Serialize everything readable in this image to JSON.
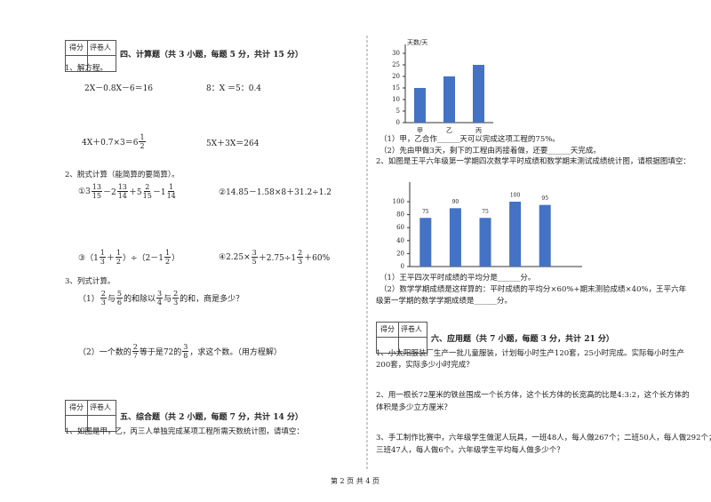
{
  "section4": {
    "score_label": "得分",
    "reviewer_label": "评卷人",
    "title": "四、计算题（共 3 小题，每题 5 分，共计 15 分）",
    "q1": {
      "prompt": "1、解方程。",
      "items": [
        [
          "2X－0.8X－6＝16"
        ],
        [
          "8：X ＝5：0.4"
        ],
        [
          "4X＋0.7×3＝6",
          {
            "n": "1",
            "d": "2"
          }
        ],
        [
          "5X＋3X＝264"
        ]
      ]
    },
    "q2": {
      "prompt": "2、脱式计算（能简算的要简算）。",
      "items": [
        [
          "①3",
          {
            "n": "13",
            "d": "15"
          },
          "－2",
          {
            "n": "13",
            "d": "14"
          },
          "＋5",
          {
            "n": "2",
            "d": "15"
          },
          "－1",
          {
            "n": "1",
            "d": "14"
          }
        ],
        [
          "②14.85－1.58×8＋31.2÷1.2"
        ],
        [
          "③（1",
          {
            "n": "1",
            "d": "3"
          },
          "＋",
          {
            "n": "1",
            "d": "2"
          },
          "）÷（2－1",
          {
            "n": "1",
            "d": "2"
          },
          "）"
        ],
        [
          "④2.25×",
          {
            "n": "3",
            "d": "5"
          },
          "＋2.75÷1",
          {
            "n": "2",
            "d": "3"
          },
          "＋60%"
        ]
      ]
    },
    "q3": {
      "prompt": "3、列式计算。",
      "items": [
        [
          "（1）",
          {
            "n": "2",
            "d": "3"
          },
          "与",
          {
            "n": "5",
            "d": "6"
          },
          "的和除以 ",
          {
            "n": "3",
            "d": "4"
          },
          "与",
          {
            "n": "2",
            "d": "3"
          },
          "的和，商是多少？"
        ],
        [
          "（2）一个数的",
          {
            "n": "2",
            "d": "7"
          },
          "等于是72的",
          {
            "n": "3",
            "d": "8"
          },
          "，求这个数。（用方程解）"
        ]
      ]
    }
  },
  "section5": {
    "score_label": "得分",
    "reviewer_label": "评卷人",
    "title": "五、综合题（共 2 小题，每题 7 分，共计 14 分）",
    "q1": {
      "prompt": "1、如图是甲，乙，丙三人单独完成某项工程所需天数统计图，请填空：",
      "blanks": [
        "（1）甲，乙合作______天可以完成这项工程的75%。",
        "（2）先由甲做3天，剩下的工程由丙接着做，还要______天完成。"
      ]
    },
    "q2": {
      "prompt": "2、如图是王平六年级第一学期四次数学平时成绩和数学期末测试成绩统计图，请根据图填空：",
      "blanks": [
        "（1）王平四次平时成绩的平均分是______分。",
        "（2）数学学期成绩是这样算的：平时成绩的平均分×60%+期末测验成绩×40%，王平六年",
        "级第一学期的数学学期成绩是______分。"
      ]
    }
  },
  "section6": {
    "score_label": "得分",
    "reviewer_label": "评卷人",
    "title": "六、应用题（共 7 小题，每题 3 分，共计 21 分）",
    "questions": [
      [
        "1、小太阳服装厂生产一批儿童服装，计划每小时生产120套，25小时完成。实际每小时生产",
        "200套，实际多少小时完成？"
      ],
      [
        "2、用一根长72厘米的铁丝围成一个长方体，这个长方体的长宽高的比是4:3:2，这个长方体的",
        "体积是多少立方厘米？"
      ],
      [
        "3、手工制作比赛中，六年级学生做泥人玩具，一班48人，每人做267个；二班50人，每人做292个；",
        "三班47人，每人做6个。六年级学生平均每人做多少个？"
      ]
    ]
  },
  "footer": "第 2 页 共 4 页",
  "chart_data": [
    {
      "type": "bar",
      "y_label": "天数/天",
      "categories": [
        "甲",
        "乙",
        "丙"
      ],
      "values": [
        15,
        20,
        25
      ],
      "color": "#4472c4",
      "ylim": [
        0,
        30
      ],
      "yticks": [
        0,
        5,
        10,
        15,
        20,
        25,
        30
      ]
    },
    {
      "type": "bar",
      "categories": [
        null,
        null,
        null,
        null,
        null
      ],
      "values": [
        75,
        90,
        75,
        100,
        95
      ],
      "color": "#4472c4",
      "ylim": [
        0,
        100
      ],
      "yticks": [
        0,
        20,
        40,
        60,
        80,
        100
      ],
      "data_labels": true
    }
  ]
}
